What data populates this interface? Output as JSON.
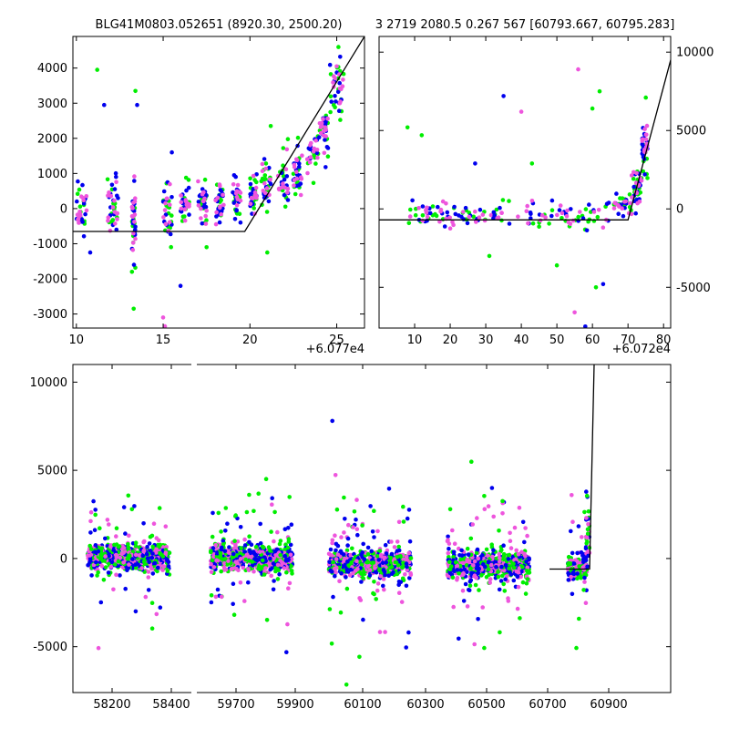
{
  "colors": {
    "blue": "#0000ee",
    "green": "#00ee00",
    "magenta": "#ee55dd",
    "line": "#000000"
  },
  "chart_data": [
    {
      "id": "top-left",
      "type": "scatter",
      "title": "BLG41M0803.052651 (8920.30, 2500.20)",
      "offset_label": "+6.077e4",
      "xlim": [
        9.8,
        26.6
      ],
      "ylim": [
        -3400,
        4900
      ],
      "xticks": [
        10,
        15,
        20,
        25
      ],
      "yticks": [
        -3000,
        -2000,
        -1000,
        0,
        1000,
        2000,
        3000,
        4000
      ],
      "ytick_side": "left",
      "model_line": [
        [
          9.8,
          -650
        ],
        [
          19.7,
          -650
        ],
        [
          26.6,
          4900
        ]
      ],
      "seed": 11,
      "clusters": [
        {
          "x0": 10.0,
          "x1": 10.6,
          "y": 0,
          "spread": 600
        },
        {
          "x0": 11.8,
          "x1": 12.4,
          "y": 0,
          "spread": 600
        },
        {
          "x0": 13.2,
          "x1": 13.4,
          "y": -300,
          "spread": 800
        },
        {
          "x0": 15.0,
          "x1": 15.5,
          "y": 0,
          "spread": 700
        },
        {
          "x0": 16.0,
          "x1": 16.5,
          "y": 100,
          "spread": 450
        },
        {
          "x0": 17.0,
          "x1": 17.5,
          "y": 150,
          "spread": 450
        },
        {
          "x0": 18.0,
          "x1": 18.5,
          "y": 200,
          "spread": 400
        },
        {
          "x0": 19.0,
          "x1": 19.5,
          "y": 250,
          "spread": 400
        },
        {
          "x0": 20.0,
          "x1": 20.4,
          "y": 400,
          "spread": 450
        },
        {
          "x0": 20.6,
          "x1": 21.2,
          "y": 600,
          "spread": 450
        },
        {
          "x0": 21.6,
          "x1": 22.2,
          "y": 800,
          "spread": 450
        },
        {
          "x0": 22.5,
          "x1": 23.0,
          "y": 1100,
          "spread": 450
        },
        {
          "x0": 23.3,
          "x1": 24.0,
          "y": 1600,
          "spread": 450
        },
        {
          "x0": 24.0,
          "x1": 24.5,
          "y": 2200,
          "spread": 500
        },
        {
          "x0": 24.6,
          "x1": 25.4,
          "y": 3400,
          "spread": 600
        }
      ],
      "outliers": [
        [
          11.2,
          3950,
          "green"
        ],
        [
          13.4,
          3350,
          "green"
        ],
        [
          11.6,
          2950,
          "blue"
        ],
        [
          13.5,
          2950,
          "blue"
        ],
        [
          15.5,
          1600,
          "blue"
        ],
        [
          16.0,
          -2200,
          "blue"
        ],
        [
          13.3,
          -2850,
          "green"
        ],
        [
          15.0,
          -3100,
          "magenta"
        ],
        [
          21.2,
          2350,
          "green"
        ],
        [
          21.0,
          -1250,
          "green"
        ],
        [
          17.5,
          -1100,
          "green"
        ],
        [
          10.8,
          -1250,
          "blue"
        ],
        [
          25.1,
          4600,
          "green"
        ],
        [
          25.0,
          4050,
          "magenta"
        ],
        [
          15.1,
          -3350,
          "magenta"
        ],
        [
          13.2,
          -1800,
          "green"
        ]
      ]
    },
    {
      "id": "top-right",
      "type": "scatter",
      "title": "3 2719 2080.5 0.267 567 [60793.667, 60795.283]",
      "offset_label": "+6.072e4",
      "xlim": [
        0,
        82
      ],
      "ylim": [
        -7600,
        11000
      ],
      "xticks": [
        10,
        20,
        30,
        40,
        50,
        60,
        70,
        80
      ],
      "yticks": [
        -5000,
        0,
        5000,
        10000
      ],
      "ytick_side": "right",
      "model_line": [
        [
          0,
          -700
        ],
        [
          70,
          -700
        ],
        [
          82,
          9500
        ]
      ],
      "seed": 23,
      "clusters": [
        {
          "x0": 8,
          "x1": 18,
          "y": -400,
          "spread": 550
        },
        {
          "x0": 18,
          "x1": 32,
          "y": -450,
          "spread": 550
        },
        {
          "x0": 32,
          "x1": 48,
          "y": -450,
          "spread": 550
        },
        {
          "x0": 48,
          "x1": 66,
          "y": -400,
          "spread": 550
        },
        {
          "x0": 66,
          "x1": 71,
          "y": 200,
          "spread": 500
        },
        {
          "x0": 71,
          "x1": 74,
          "y": 1400,
          "spread": 900
        },
        {
          "x0": 74,
          "x1": 75.5,
          "y": 3800,
          "spread": 900
        }
      ],
      "outliers": [
        [
          8,
          5200,
          "green"
        ],
        [
          12,
          4700,
          "green"
        ],
        [
          35,
          7200,
          "blue"
        ],
        [
          56,
          8900,
          "magenta"
        ],
        [
          62,
          7500,
          "green"
        ],
        [
          60,
          6400,
          "green"
        ],
        [
          75,
          7100,
          "green"
        ],
        [
          61,
          -5000,
          "green"
        ],
        [
          63,
          -4800,
          "blue"
        ],
        [
          58,
          -7500,
          "blue"
        ],
        [
          27,
          2900,
          "blue"
        ],
        [
          43,
          2900,
          "green"
        ],
        [
          50,
          -3600,
          "green"
        ],
        [
          55,
          -6600,
          "magenta"
        ],
        [
          40,
          6200,
          "magenta"
        ],
        [
          31,
          -3000,
          "green"
        ]
      ]
    },
    {
      "id": "bottom",
      "type": "scatter",
      "title": "",
      "xlim": [
        0,
        640
      ],
      "ylim": [
        -7600,
        11000
      ],
      "xticks_labeled": [
        {
          "v": 58200,
          "pos": 27
        },
        {
          "v": 58400,
          "pos": 92
        },
        {
          "v": 59700,
          "pos": 163
        },
        {
          "v": 59900,
          "pos": 228
        },
        {
          "v": 60100,
          "pos": 302
        },
        {
          "v": 60300,
          "pos": 371
        },
        {
          "v": 60500,
          "pos": 438
        },
        {
          "v": 60700,
          "pos": 505
        },
        {
          "v": 60900,
          "pos": 572
        }
      ],
      "yticks": [
        -5000,
        0,
        5000,
        10000
      ],
      "ytick_side": "left",
      "break_at": 117,
      "model_line": [
        [
          507,
          -600
        ],
        [
          551,
          -600
        ],
        [
          556,
          11000
        ]
      ],
      "seed": 37,
      "groups": [
        {
          "x0": 0,
          "x1": 90,
          "y": 100,
          "spread": 600,
          "n": 700
        },
        {
          "x0": 135,
          "x1": 225,
          "y": 0,
          "spread": 600,
          "n": 700
        },
        {
          "x0": 265,
          "x1": 355,
          "y": -300,
          "spread": 600,
          "n": 700
        },
        {
          "x0": 395,
          "x1": 485,
          "y": -400,
          "spread": 600,
          "n": 700
        },
        {
          "x0": 527,
          "x1": 548,
          "y": -500,
          "spread": 550,
          "n": 160
        }
      ]
    }
  ]
}
